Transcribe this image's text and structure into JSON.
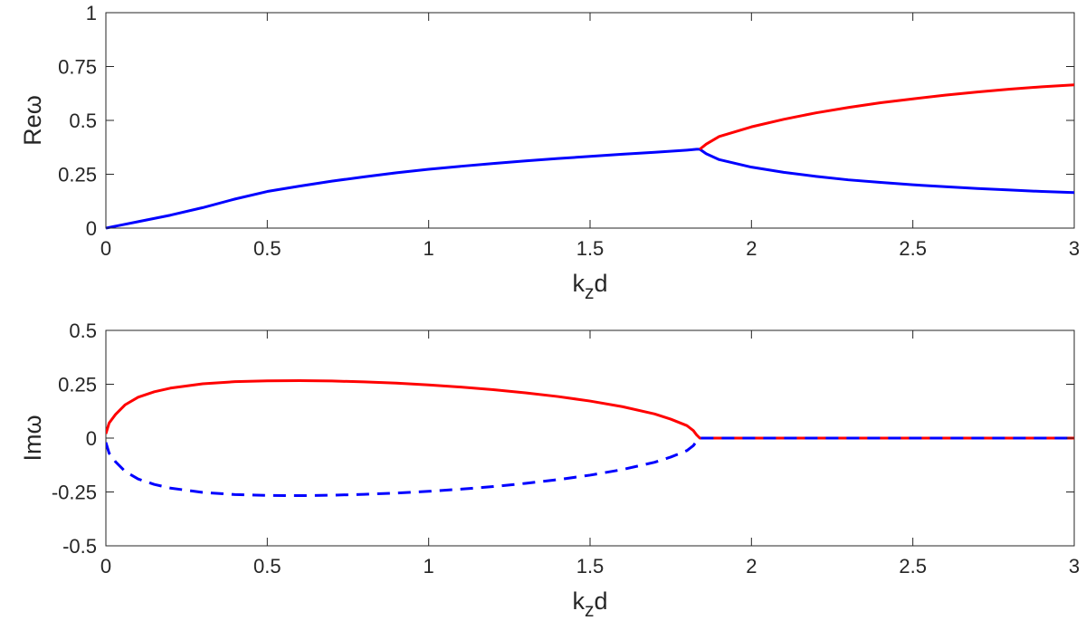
{
  "chart_data": [
    {
      "type": "line",
      "xlabel_main": "k",
      "xlabel_sub": "z",
      "xlabel_tail": "d",
      "ylabel": "Reω",
      "xlim": [
        0,
        3
      ],
      "ylim": [
        0,
        1
      ],
      "xticks": [
        0,
        0.5,
        1,
        1.5,
        2,
        2.5,
        3
      ],
      "xtick_labels": [
        "0",
        "0.5",
        "1",
        "1.5",
        "2",
        "2.5",
        "3"
      ],
      "yticks": [
        0,
        0.25,
        0.5,
        0.75,
        1
      ],
      "ytick_labels": [
        "0",
        "0.25",
        "0.5",
        "0.75",
        "1"
      ],
      "grid": false,
      "series": [
        {
          "color": "#0000ff",
          "style": "solid",
          "x": [
            0,
            0.05,
            0.1,
            0.2,
            0.3,
            0.4,
            0.5,
            0.6,
            0.7,
            0.8,
            0.9,
            1.0,
            1.1,
            1.2,
            1.3,
            1.4,
            1.5,
            1.6,
            1.7,
            1.8,
            1.83,
            1.84,
            1.86,
            1.9,
            2.0,
            2.1,
            2.2,
            2.3,
            2.4,
            2.5,
            2.6,
            2.7,
            2.8,
            2.9,
            3.0
          ],
          "y": [
            0,
            0.015,
            0.03,
            0.06,
            0.095,
            0.135,
            0.17,
            0.195,
            0.218,
            0.238,
            0.257,
            0.273,
            0.287,
            0.3,
            0.312,
            0.323,
            0.333,
            0.343,
            0.352,
            0.362,
            0.366,
            0.366,
            0.345,
            0.318,
            0.283,
            0.259,
            0.24,
            0.224,
            0.212,
            0.201,
            0.192,
            0.184,
            0.177,
            0.17,
            0.165
          ]
        },
        {
          "color": "#ff0000",
          "style": "solid",
          "x": [
            1.84,
            1.86,
            1.9,
            2.0,
            2.1,
            2.2,
            2.3,
            2.4,
            2.5,
            2.6,
            2.7,
            2.8,
            2.9,
            3.0
          ],
          "y": [
            0.366,
            0.39,
            0.425,
            0.47,
            0.505,
            0.535,
            0.56,
            0.582,
            0.6,
            0.617,
            0.632,
            0.645,
            0.656,
            0.665
          ]
        }
      ]
    },
    {
      "type": "line",
      "xlabel_main": "k",
      "xlabel_sub": "z",
      "xlabel_tail": "d",
      "ylabel": "Imω",
      "xlim": [
        0,
        3
      ],
      "ylim": [
        -0.5,
        0.5
      ],
      "xticks": [
        0,
        0.5,
        1,
        1.5,
        2,
        2.5,
        3
      ],
      "xtick_labels": [
        "0",
        "0.5",
        "1",
        "1.5",
        "2",
        "2.5",
        "3"
      ],
      "yticks": [
        -0.5,
        -0.25,
        0,
        0.25,
        0.5
      ],
      "ytick_labels": [
        "-0.5",
        "-0.25",
        "0",
        "0.25",
        "0.5"
      ],
      "grid": false,
      "series": [
        {
          "color": "#ff0000",
          "style": "solid",
          "x": [
            0,
            0.01,
            0.03,
            0.06,
            0.1,
            0.15,
            0.2,
            0.3,
            0.4,
            0.5,
            0.6,
            0.7,
            0.8,
            0.9,
            1.0,
            1.1,
            1.2,
            1.3,
            1.4,
            1.5,
            1.6,
            1.7,
            1.75,
            1.8,
            1.82,
            1.83,
            1.84,
            1.9,
            2.0,
            2.5,
            3.0
          ],
          "y": [
            0.02,
            0.07,
            0.11,
            0.155,
            0.19,
            0.215,
            0.232,
            0.252,
            0.262,
            0.266,
            0.267,
            0.265,
            0.261,
            0.255,
            0.247,
            0.237,
            0.225,
            0.21,
            0.193,
            0.172,
            0.146,
            0.112,
            0.088,
            0.058,
            0.035,
            0.015,
            0,
            0,
            0,
            0,
            0
          ]
        },
        {
          "color": "#0000ff",
          "style": "dashed",
          "x": [
            0,
            0.01,
            0.03,
            0.06,
            0.1,
            0.15,
            0.2,
            0.3,
            0.4,
            0.5,
            0.6,
            0.7,
            0.8,
            0.9,
            1.0,
            1.1,
            1.2,
            1.3,
            1.4,
            1.5,
            1.6,
            1.7,
            1.75,
            1.8,
            1.82,
            1.83,
            1.84,
            1.9,
            2.0,
            2.5,
            3.0
          ],
          "y": [
            -0.02,
            -0.07,
            -0.11,
            -0.155,
            -0.19,
            -0.215,
            -0.232,
            -0.252,
            -0.262,
            -0.266,
            -0.267,
            -0.265,
            -0.261,
            -0.255,
            -0.247,
            -0.237,
            -0.225,
            -0.21,
            -0.193,
            -0.172,
            -0.146,
            -0.112,
            -0.088,
            -0.058,
            -0.035,
            -0.015,
            0,
            0,
            0,
            0,
            0
          ]
        }
      ]
    }
  ]
}
